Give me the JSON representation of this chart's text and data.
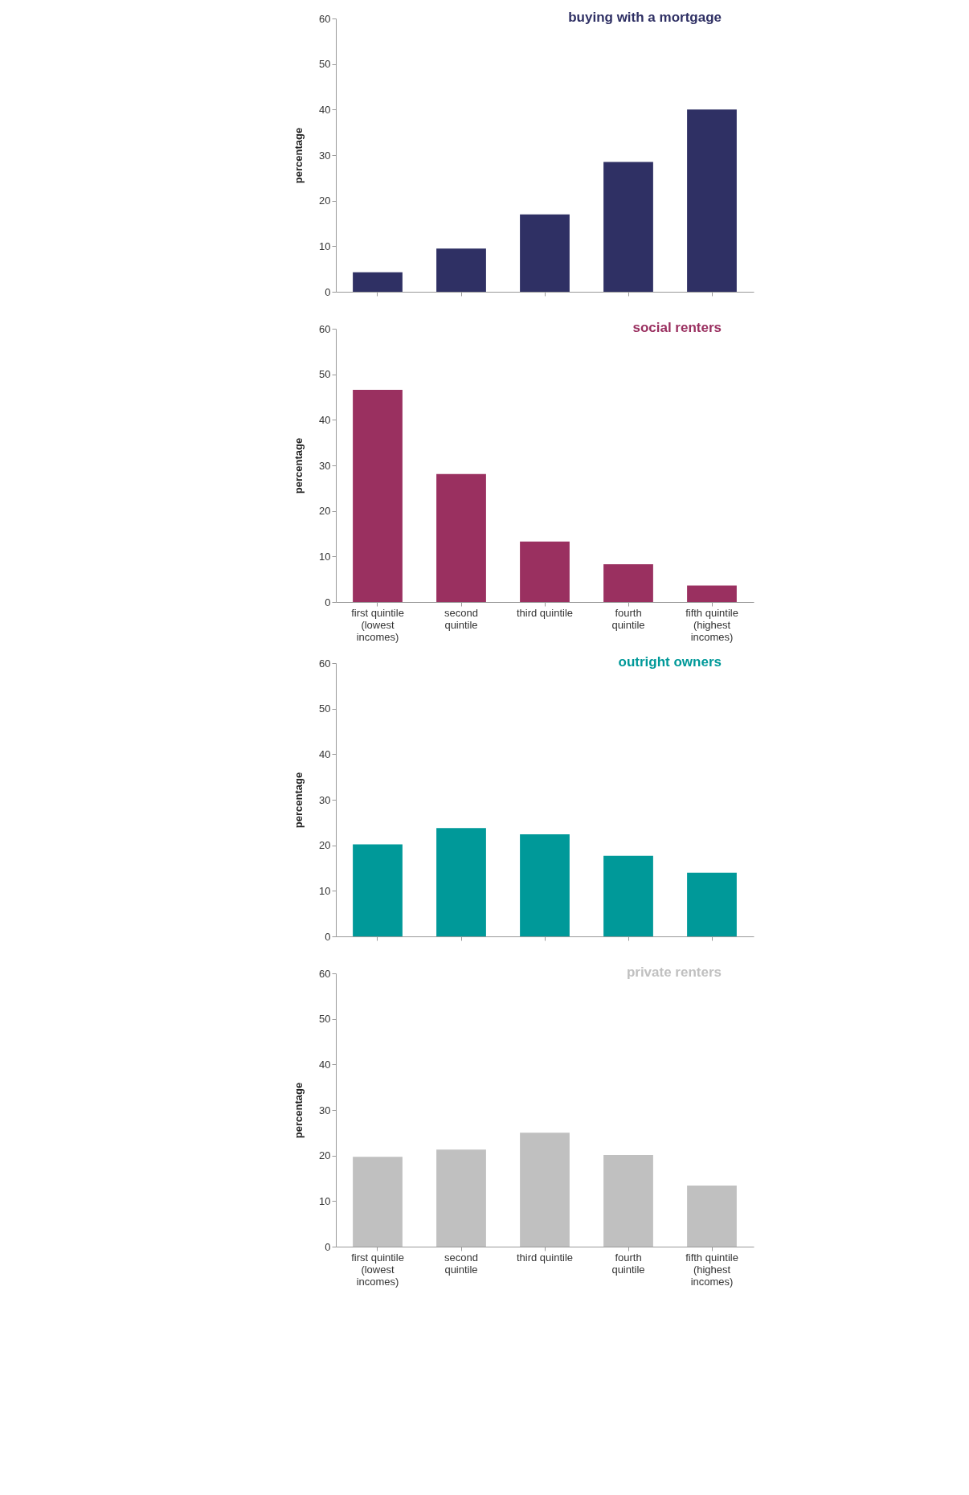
{
  "chart_data": [
    {
      "type": "bar",
      "title": "buying with a mortgage",
      "ylabel": "percentage",
      "categories": [
        null,
        null,
        null,
        null,
        null
      ],
      "values": [
        4.3,
        9.5,
        17,
        28.5,
        40
      ],
      "color": "#2f3064",
      "ylim": [
        0,
        60
      ],
      "yticks": [
        0,
        10,
        20,
        30,
        40,
        50,
        60
      ]
    },
    {
      "type": "bar",
      "title": "social renters",
      "ylabel": "percentage",
      "categories": [
        "first quintile (lowest incomes)",
        "second quintile",
        "third quintile",
        "fourth quintile",
        "fifth quintile (highest incomes)"
      ],
      "values": [
        46.6,
        28.1,
        13.3,
        8.3,
        3.6
      ],
      "color": "#9a3060",
      "ylim": [
        0,
        60
      ],
      "yticks": [
        0,
        10,
        20,
        30,
        40,
        50,
        60
      ]
    },
    {
      "type": "bar",
      "title": "outright owners",
      "ylabel": "percentage",
      "categories": [
        null,
        null,
        null,
        null,
        null
      ],
      "values": [
        20.2,
        23.8,
        22.4,
        17.7,
        14
      ],
      "color": "#009999",
      "ylim": [
        0,
        60
      ],
      "yticks": [
        0,
        10,
        20,
        30,
        40,
        50,
        60
      ]
    },
    {
      "type": "bar",
      "title": "private renters",
      "ylabel": "percentage",
      "categories": [
        "first quintile (lowest incomes)",
        "second quintile",
        "third quintile",
        "fourth quintile",
        "fifth quintile (highest incomes)"
      ],
      "values": [
        19.7,
        21.3,
        25,
        20.1,
        13.4
      ],
      "color": "#c0c0c0",
      "ylim": [
        0,
        60
      ],
      "yticks": [
        0,
        10,
        20,
        30,
        40,
        50,
        60
      ]
    }
  ]
}
